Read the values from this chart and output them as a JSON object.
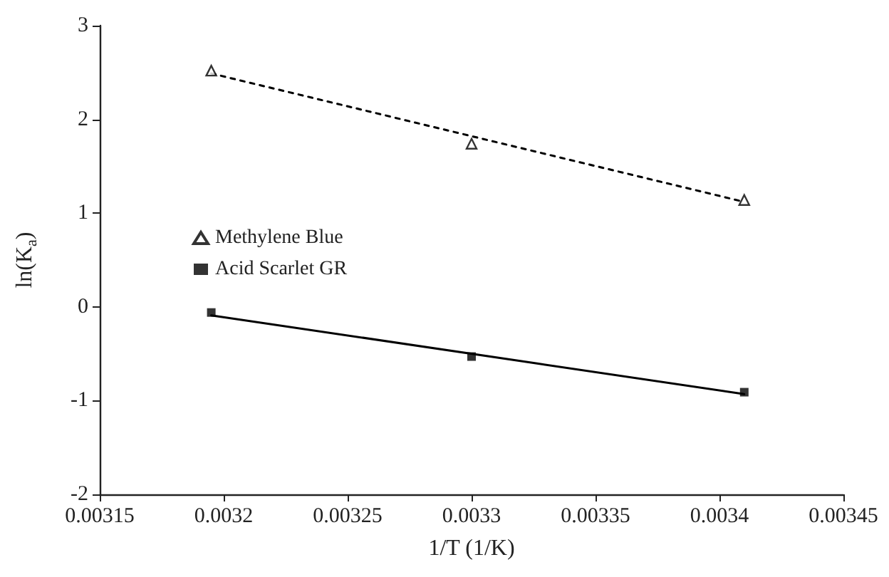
{
  "chart_data": {
    "type": "scatter",
    "xlabel": "1/T (1/K)",
    "ylabel": "ln(K$_{a}$)",
    "xlim": [
      0.00315,
      0.00345
    ],
    "xticks": [
      0.00315,
      0.0032,
      0.00325,
      0.0033,
      0.00335,
      0.0034,
      0.00345
    ],
    "ylim": [
      -2,
      3
    ],
    "yticks": [
      -2,
      -1,
      0,
      1,
      2,
      3
    ],
    "grid": false,
    "legend": "left",
    "series": [
      {
        "name": "Methylene Blue",
        "type": "scatter",
        "marker": "triangle",
        "color": "#000000",
        "x": [
          0.003195,
          0.0033,
          0.00341
        ],
        "values": [
          2.52,
          1.74,
          1.14
        ]
      },
      {
        "name": "Acid Scarlet GR",
        "type": "scatter",
        "marker": "square",
        "color": "#000000",
        "x": [
          0.003195,
          0.0033,
          0.00341
        ],
        "values": [
          -0.06,
          -0.53,
          -0.91
        ]
      },
      {
        "type": "line",
        "marker": "none",
        "line_style": "dashed",
        "color": "#000000",
        "x": [
          0.003195,
          0.00341
        ],
        "values": [
          2.49,
          1.12
        ]
      },
      {
        "type": "line",
        "marker": "none",
        "line_style": "solid",
        "color": "#000000",
        "x": [
          0.003195,
          0.00341
        ],
        "values": [
          -0.09,
          -0.93
        ]
      }
    ]
  }
}
